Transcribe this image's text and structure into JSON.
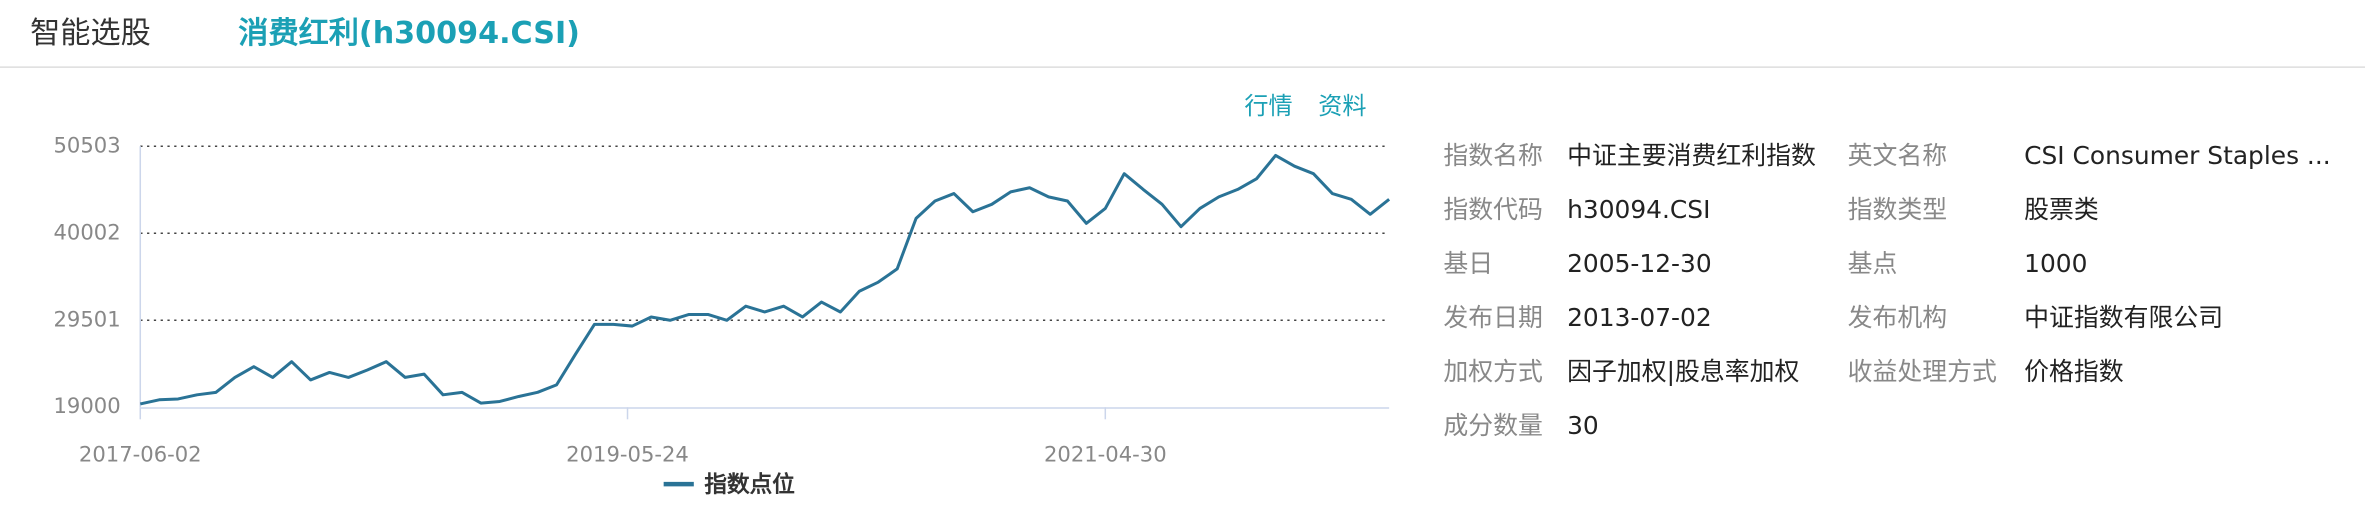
{
  "header": {
    "title": "智能选股",
    "index": "消费红利(h30094.CSI)"
  },
  "links": [
    "行情",
    "资料"
  ],
  "chart_data": {
    "type": "line",
    "x": [
      "2017-06-02",
      "2017-06-30",
      "2017-07-28",
      "2017-08-25",
      "2017-09-22",
      "2017-10-20",
      "2017-11-17",
      "2017-12-15",
      "2018-01-12",
      "2018-02-09",
      "2018-03-09",
      "2018-04-06",
      "2018-05-04",
      "2018-06-01",
      "2018-06-29",
      "2018-07-27",
      "2018-08-24",
      "2018-09-21",
      "2018-10-19",
      "2018-11-16",
      "2018-12-14",
      "2019-01-11",
      "2019-02-08",
      "2019-03-08",
      "2019-04-05",
      "2019-05-03",
      "2019-05-31",
      "2019-06-28",
      "2019-07-26",
      "2019-08-23",
      "2019-09-20",
      "2019-10-18",
      "2019-11-15",
      "2019-12-13",
      "2020-01-10",
      "2020-02-07",
      "2020-03-06",
      "2020-04-03",
      "2020-05-01",
      "2020-05-29",
      "2020-06-26",
      "2020-07-24",
      "2020-08-21",
      "2020-09-18",
      "2020-10-16",
      "2020-11-13",
      "2020-12-11",
      "2021-01-08",
      "2021-02-05",
      "2021-03-05",
      "2021-04-02",
      "2021-04-30",
      "2021-05-28",
      "2021-06-25",
      "2021-07-23",
      "2021-08-20",
      "2021-09-17",
      "2021-10-15",
      "2021-11-12",
      "2021-12-10",
      "2022-01-07",
      "2022-02-04",
      "2022-03-04",
      "2022-04-01",
      "2022-04-29",
      "2022-05-27",
      "2022-06-24"
    ],
    "series": [
      {
        "name": "指数点位",
        "color": "#2a7396",
        "values": [
          19400,
          19900,
          20000,
          20500,
          20800,
          22600,
          23900,
          22600,
          24500,
          22300,
          23200,
          22600,
          23500,
          24500,
          22600,
          23000,
          20500,
          20800,
          19500,
          19700,
          20300,
          20800,
          21700,
          25400,
          29000,
          29000,
          28800,
          29900,
          29500,
          30200,
          30200,
          29500,
          31200,
          30500,
          31200,
          29900,
          31700,
          30500,
          33000,
          34100,
          35700,
          41800,
          43900,
          44800,
          42600,
          43500,
          45000,
          45500,
          44400,
          43900,
          41200,
          43000,
          47200,
          45300,
          43500,
          40800,
          43000,
          44400,
          45300,
          46600,
          49400,
          48100,
          47200,
          44800,
          44100,
          42300,
          44100
        ]
      }
    ],
    "xlim": [
      "2017-06-02",
      "2022-06-24"
    ],
    "xticks": [
      "2017-06-02",
      "2019-05-24",
      "2021-04-30"
    ],
    "ylim": [
      19000,
      50503
    ],
    "yticks": [
      19000,
      29501,
      40002,
      50503
    ],
    "grid": true
  },
  "info": [
    [
      "指数名称",
      "中证主要消费红利指数",
      "英文名称",
      "CSI Consumer Staples ..."
    ],
    [
      "指数代码",
      "h30094.CSI",
      "指数类型",
      "股票类"
    ],
    [
      "基日",
      "2005-12-30",
      "基点",
      "1000"
    ],
    [
      "发布日期",
      "2013-07-02",
      "发布机构",
      "中证指数有限公司"
    ],
    [
      "加权方式",
      "因子加权|股息率加权",
      "收益处理方式",
      "价格指数"
    ],
    [
      "成分数量",
      "30"
    ]
  ]
}
